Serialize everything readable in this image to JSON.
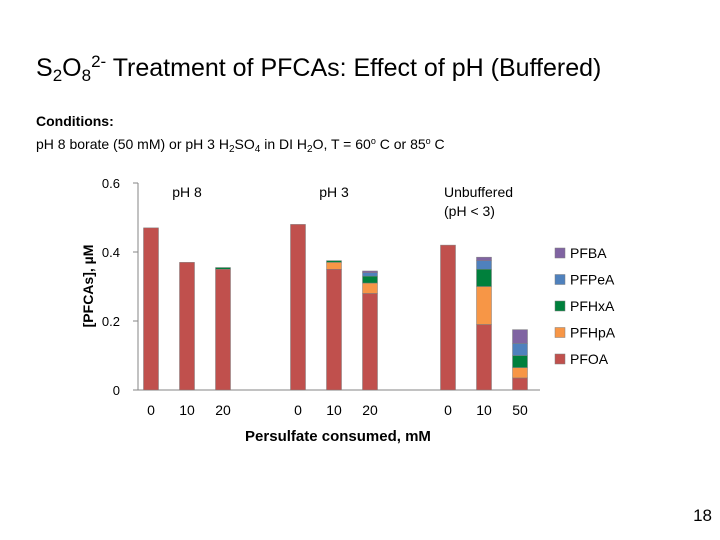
{
  "slide": {
    "title": {
      "t1": "S",
      "s1": "2",
      "t2": "O",
      "s2": "8",
      "sup": "2-",
      "t3": " Treatment of PFCAs: Effect of pH (Buffered)"
    },
    "conditions": {
      "label": "Conditions:",
      "p1": "pH 8 borate (50 mM) or pH 3 H",
      "s1": "2",
      "p2": "SO",
      "s2": "4",
      "p3": " in DI H",
      "s3": "2",
      "p4": "O, T = 60",
      "o1": "o",
      "p5": " C or 85",
      "o2": "o",
      "p6": " C"
    },
    "page_number": "18"
  },
  "chart_data": {
    "type": "bar",
    "stacked": true,
    "xlabel": "Persulfate consumed, mM",
    "ylabel": "[PFCAs], µM",
    "ylim": [
      0,
      0.6
    ],
    "yticks": [
      "0",
      "0.2",
      "0.4",
      "0.6"
    ],
    "groups": [
      {
        "label": "pH 8",
        "label_lines": [
          "pH 8"
        ],
        "categories": [
          "0",
          "10",
          "20"
        ]
      },
      {
        "label": "pH 3",
        "label_lines": [
          "pH 3"
        ],
        "categories": [
          "0",
          "10",
          "20"
        ]
      },
      {
        "label": "Unbuffered (pH < 3)",
        "label_lines": [
          "Unbuffered",
          "(pH < 3)"
        ],
        "categories": [
          "0",
          "10",
          "50"
        ]
      }
    ],
    "series": [
      {
        "name": "PFOA",
        "color": "#c0504d",
        "values": [
          0.47,
          0.37,
          0.35,
          0.48,
          0.35,
          0.28,
          0.42,
          0.19,
          0.035
        ]
      },
      {
        "name": "PFHpA",
        "color": "#f79646",
        "values": [
          0,
          0,
          0,
          0,
          0.02,
          0.03,
          0,
          0.11,
          0.03
        ]
      },
      {
        "name": "PFHxA",
        "color": "#00803c",
        "values": [
          0,
          0,
          0.005,
          0,
          0.005,
          0.02,
          0,
          0.05,
          0.035
        ]
      },
      {
        "name": "PFPeA",
        "color": "#4f81bd",
        "values": [
          0,
          0,
          0,
          0,
          0,
          0.01,
          0,
          0.025,
          0.035
        ]
      },
      {
        "name": "PFBA",
        "color": "#8064a2",
        "values": [
          0,
          0,
          0,
          0,
          0,
          0.005,
          0,
          0.01,
          0.04
        ]
      }
    ],
    "legend": {
      "position": "right",
      "order": [
        "PFBA",
        "PFPeA",
        "PFHxA",
        "PFHpA",
        "PFOA"
      ]
    }
  }
}
